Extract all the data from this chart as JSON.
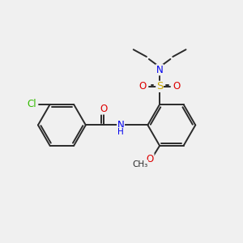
{
  "bg_color": "#f0f0f0",
  "bond_color": "#2a2a2a",
  "bond_width": 1.4,
  "atom_colors": {
    "N": "#0000ee",
    "O": "#dd0000",
    "S": "#ccaa00",
    "Cl": "#33bb00",
    "C": "#2a2a2a"
  },
  "font_size": 8.5,
  "fig_size": [
    3.0,
    3.0
  ],
  "dpi": 100,
  "xlim": [
    0,
    10
  ],
  "ylim": [
    0,
    10
  ]
}
